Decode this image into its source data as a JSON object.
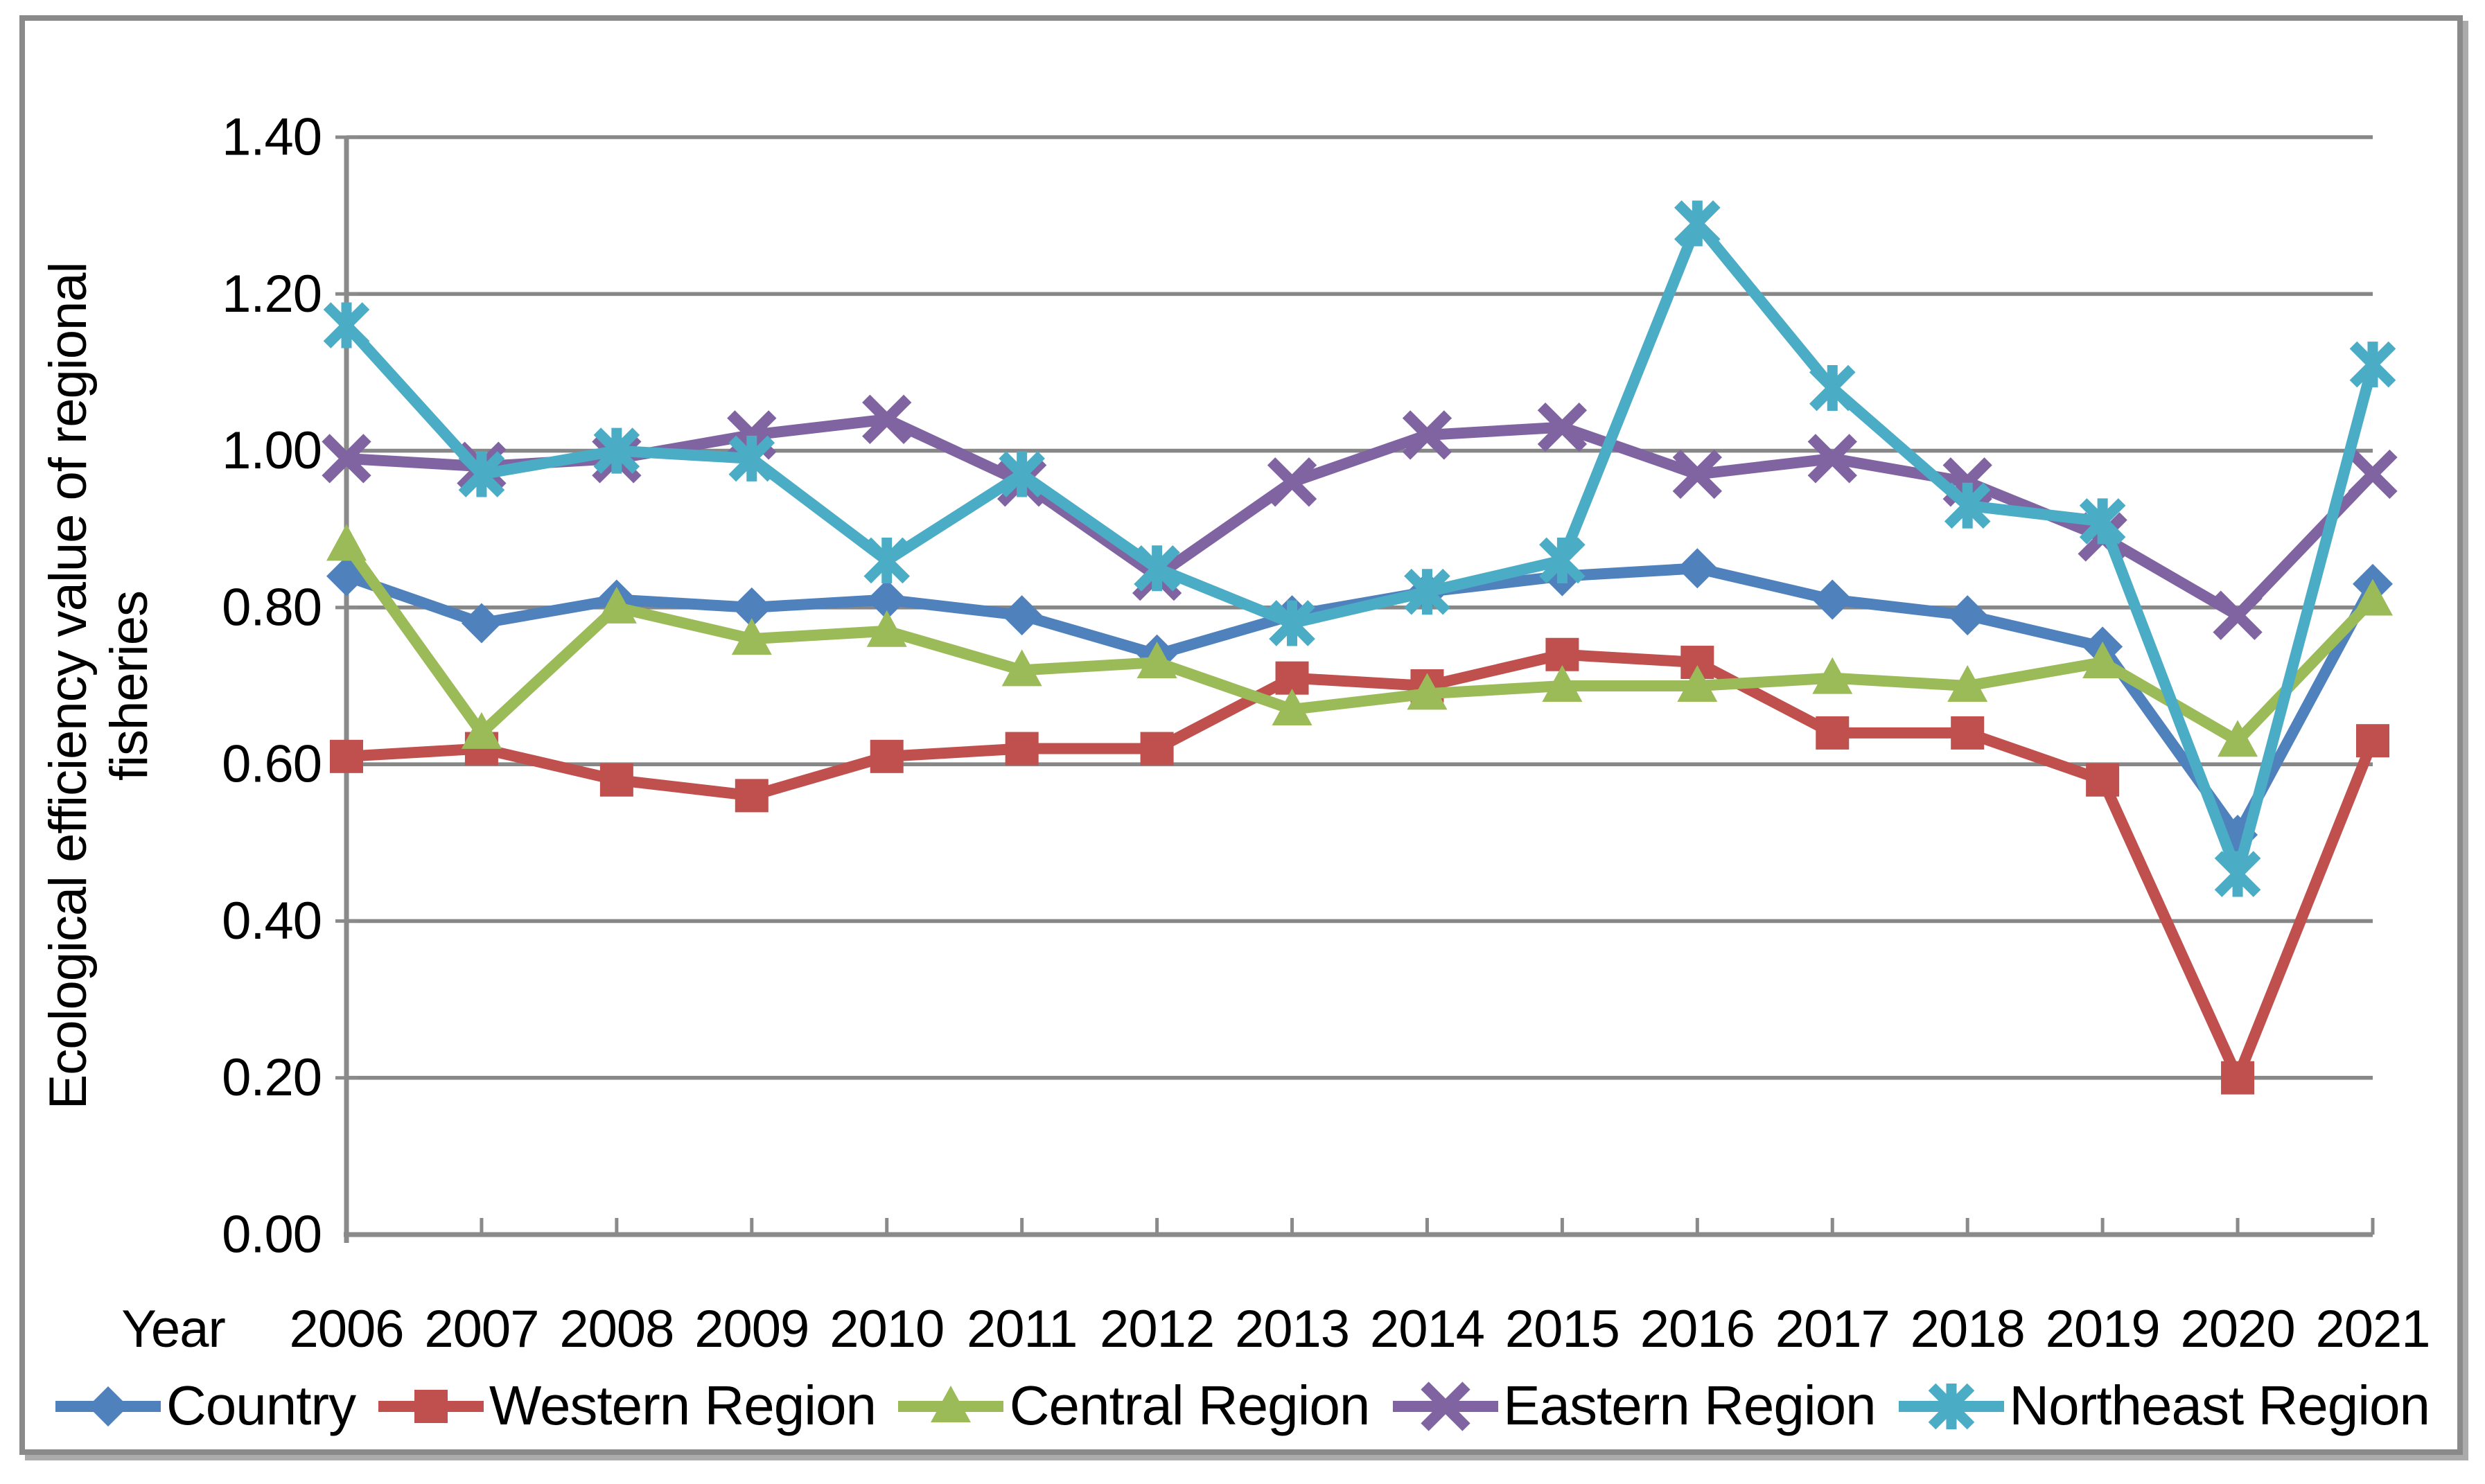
{
  "figure": {
    "background": "#FFFFFF",
    "frame_color": "#8A8A8A",
    "shadow_color": "#ABABAB"
  },
  "chart_data": {
    "type": "line",
    "title": "",
    "xlabel": "Year",
    "ylabel": "Ecological efficiency value of regional fisheries",
    "ylabel_lines": [
      "Ecological efficiency value of regional",
      "fisheries"
    ],
    "categories": [
      "2006",
      "2007",
      "2008",
      "2009",
      "2010",
      "2011",
      "2012",
      "2013",
      "2014",
      "2015",
      "2016",
      "2017",
      "2018",
      "2019",
      "2020",
      "2021"
    ],
    "ylim": [
      0.0,
      1.4
    ],
    "ytick_step": 0.2,
    "ytick_labels": [
      "0.00",
      "0.20",
      "0.40",
      "0.60",
      "0.80",
      "1.00",
      "1.20",
      "1.40"
    ],
    "grid": "horizontal",
    "grid_color": "#878787",
    "axis_color": "#8A8A8A",
    "text_color": "#000000",
    "legend_position": "bottom",
    "series": [
      {
        "name": "Country",
        "color": "#4F81BD",
        "marker": "diamond",
        "values": [
          0.84,
          0.78,
          0.81,
          0.8,
          0.81,
          0.79,
          0.74,
          0.79,
          0.82,
          0.84,
          0.85,
          0.81,
          0.79,
          0.75,
          0.51,
          0.83
        ]
      },
      {
        "name": "Western Region",
        "color": "#C0504D",
        "marker": "square",
        "values": [
          0.61,
          0.62,
          0.58,
          0.56,
          0.61,
          0.62,
          0.62,
          0.71,
          0.7,
          0.74,
          0.73,
          0.64,
          0.64,
          0.58,
          0.2,
          0.63
        ]
      },
      {
        "name": "Central Region",
        "color": "#9BBB59",
        "marker": "triangle",
        "values": [
          0.88,
          0.64,
          0.8,
          0.76,
          0.77,
          0.72,
          0.73,
          0.67,
          0.69,
          0.7,
          0.7,
          0.71,
          0.7,
          0.73,
          0.63,
          0.81
        ]
      },
      {
        "name": "Eastern Region",
        "color": "#8064A2",
        "marker": "x",
        "values": [
          0.99,
          0.98,
          0.99,
          1.02,
          1.04,
          0.96,
          0.84,
          0.96,
          1.02,
          1.03,
          0.97,
          0.99,
          0.96,
          0.89,
          0.79,
          0.97
        ]
      },
      {
        "name": "Northeast Region",
        "color": "#4BACC6",
        "marker": "star",
        "values": [
          1.16,
          0.97,
          1.0,
          0.99,
          0.86,
          0.97,
          0.85,
          0.78,
          0.82,
          0.86,
          1.29,
          1.08,
          0.93,
          0.91,
          0.46,
          1.11
        ]
      }
    ]
  }
}
